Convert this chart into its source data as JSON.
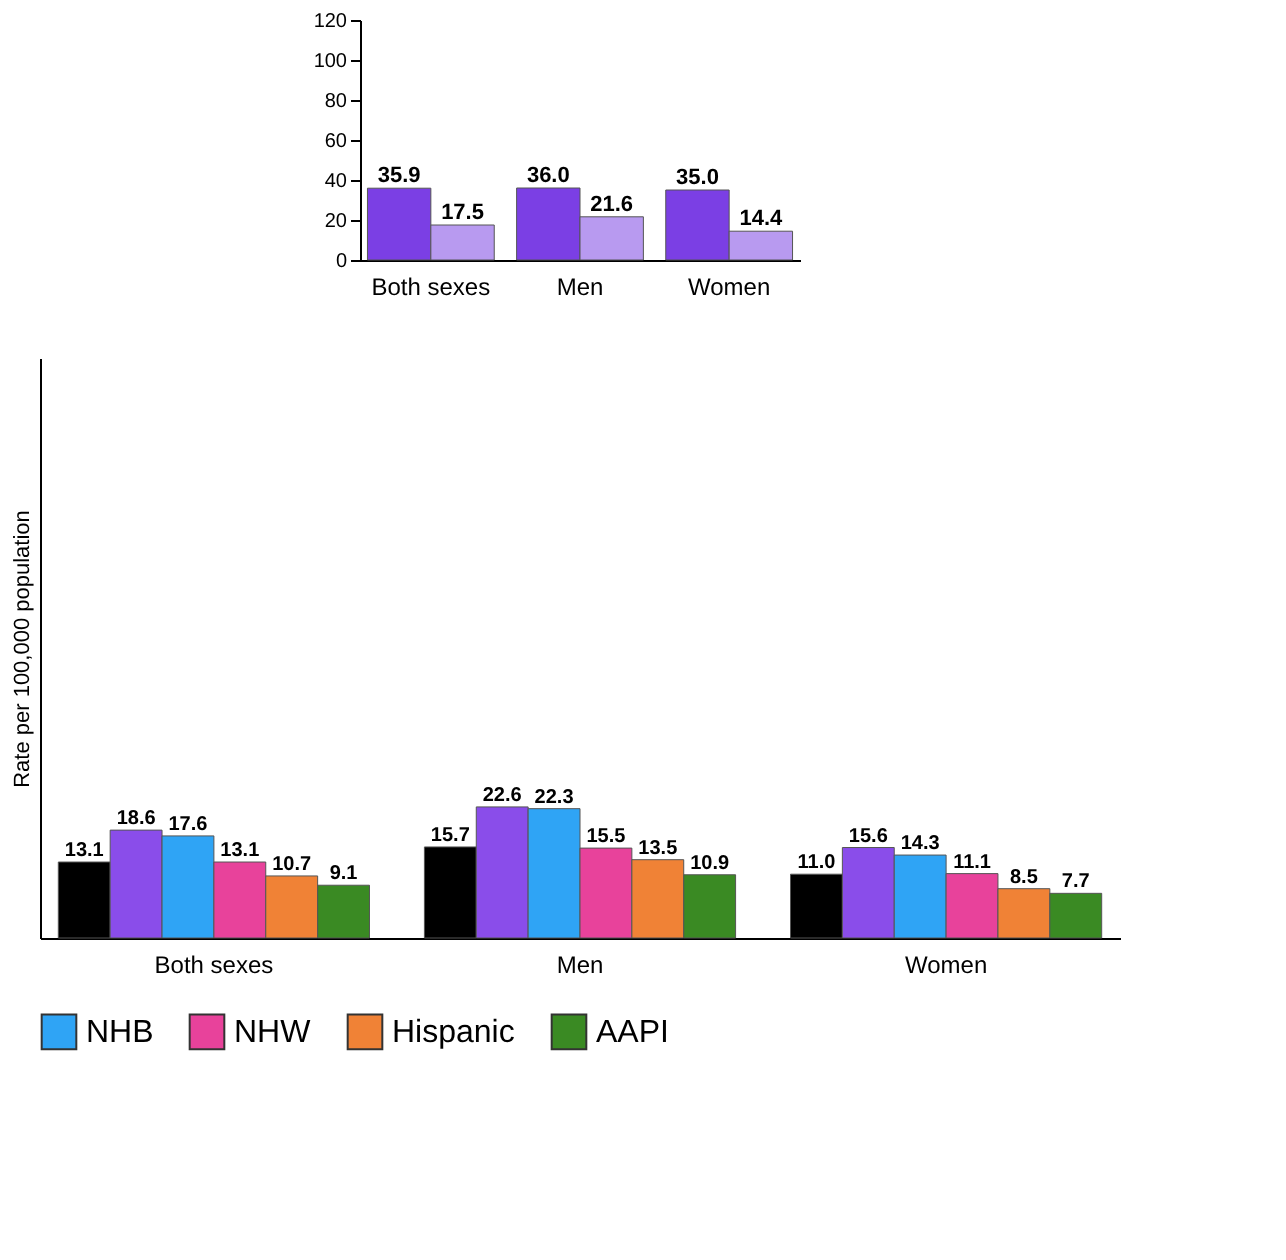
{
  "chart_data": [
    {
      "type": "bar",
      "categories": [
        "Both sexes",
        "Men",
        "Women"
      ],
      "ylim": [
        0,
        120
      ],
      "yticks": [
        0,
        20,
        40,
        60,
        80,
        100,
        120
      ],
      "grid": false,
      "legend": false,
      "series": [
        {
          "color": "#7b3fe4",
          "values": [
            35.9,
            36.0,
            35.0
          ],
          "value_labels": [
            "35.9",
            "36.0",
            "35.0"
          ]
        },
        {
          "color": "#b89af0",
          "values": [
            17.5,
            21.6,
            14.4
          ],
          "value_labels": [
            "17.5",
            "21.6",
            "14.4"
          ]
        }
      ]
    },
    {
      "type": "bar",
      "categories": [
        "Both sexes",
        "Men",
        "Women"
      ],
      "ylabel": "Rate per 100,000 population",
      "ylim": [
        0,
        100
      ],
      "tick_labels": "x",
      "grid": false,
      "legend": "bottom",
      "series": [
        {
          "color": "#000000",
          "values": [
            13.1,
            15.7,
            11.0
          ],
          "value_labels": [
            "13.1",
            "15.7",
            "11.0"
          ]
        },
        {
          "color": "#8a4dea",
          "values": [
            18.6,
            22.6,
            15.6
          ],
          "value_labels": [
            "18.6",
            "22.6",
            "15.6"
          ]
        },
        {
          "name": "NHB",
          "color": "#2fa4f5",
          "values": [
            17.6,
            22.3,
            14.3
          ],
          "value_labels": [
            "17.6",
            "22.3",
            "14.3"
          ]
        },
        {
          "name": "NHW",
          "color": "#e8429b",
          "values": [
            13.1,
            15.5,
            11.1
          ],
          "value_labels": [
            "13.1",
            "15.5",
            "11.1"
          ]
        },
        {
          "name": "Hispanic",
          "color": "#f08236",
          "values": [
            10.7,
            13.5,
            8.5
          ],
          "value_labels": [
            "10.7",
            "13.5",
            "8.5"
          ]
        },
        {
          "name": "AAPI",
          "color": "#3a8a23",
          "values": [
            9.1,
            10.9,
            7.7
          ],
          "value_labels": [
            "9.1",
            "10.9",
            "7.7"
          ]
        }
      ]
    }
  ]
}
